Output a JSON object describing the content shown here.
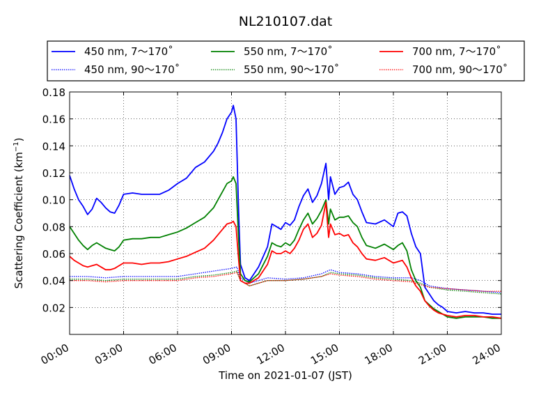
{
  "chart_data": {
    "type": "line",
    "title": "NL210107.dat",
    "xlabel": "Time on 2021-01-07 (JST)",
    "ylabel_main": "Scattering Coefficient (km",
    "ylabel_sup": "−1",
    "ylabel_close": ")",
    "xlim": [
      0,
      24
    ],
    "ylim": [
      0.0,
      0.18
    ],
    "x_ticks": [
      0,
      3,
      6,
      9,
      12,
      15,
      18,
      21,
      24
    ],
    "x_tick_labels": [
      "00:00",
      "03:00",
      "06:00",
      "09:00",
      "12:00",
      "15:00",
      "18:00",
      "21:00",
      "24:00"
    ],
    "y_ticks": [
      0.02,
      0.04,
      0.06,
      0.08,
      0.1,
      0.12,
      0.14,
      0.16,
      0.18
    ],
    "y_tick_labels": [
      "0.02",
      "0.04",
      "0.06",
      "0.08",
      "0.10",
      "0.12",
      "0.14",
      "0.16",
      "0.18"
    ],
    "grid": true,
    "legend_position": "top",
    "series": [
      {
        "name": "450 nm, 7～170˚",
        "color": "#0000ff",
        "style": "solid",
        "x": [
          0,
          0.25,
          0.5,
          0.75,
          1,
          1.25,
          1.5,
          1.75,
          2,
          2.25,
          2.5,
          2.75,
          3,
          3.5,
          4,
          4.5,
          5,
          5.5,
          6,
          6.5,
          7,
          7.5,
          8,
          8.25,
          8.5,
          8.75,
          9,
          9.1,
          9.25,
          9.4,
          9.5,
          9.75,
          10,
          10.5,
          11,
          11.25,
          11.5,
          11.75,
          12,
          12.25,
          12.5,
          12.75,
          13,
          13.25,
          13.5,
          13.75,
          14,
          14.25,
          14.4,
          14.5,
          14.75,
          15,
          15.25,
          15.5,
          15.75,
          16,
          16.25,
          16.5,
          17,
          17.5,
          18,
          18.25,
          18.5,
          18.75,
          19,
          19.25,
          19.5,
          19.75,
          20,
          20.25,
          20.5,
          20.75,
          21,
          21.5,
          22,
          22.5,
          23,
          23.5,
          24
        ],
        "y": [
          0.118,
          0.108,
          0.1,
          0.095,
          0.089,
          0.093,
          0.101,
          0.098,
          0.094,
          0.091,
          0.09,
          0.096,
          0.104,
          0.105,
          0.104,
          0.104,
          0.104,
          0.107,
          0.112,
          0.116,
          0.124,
          0.128,
          0.136,
          0.142,
          0.15,
          0.16,
          0.165,
          0.17,
          0.16,
          0.09,
          0.052,
          0.042,
          0.04,
          0.05,
          0.065,
          0.082,
          0.08,
          0.078,
          0.083,
          0.081,
          0.085,
          0.095,
          0.103,
          0.108,
          0.098,
          0.103,
          0.112,
          0.127,
          0.1,
          0.117,
          0.104,
          0.109,
          0.11,
          0.113,
          0.104,
          0.1,
          0.091,
          0.083,
          0.082,
          0.085,
          0.08,
          0.09,
          0.091,
          0.088,
          0.075,
          0.065,
          0.06,
          0.035,
          0.03,
          0.025,
          0.022,
          0.02,
          0.017,
          0.016,
          0.017,
          0.016,
          0.016,
          0.015,
          0.015
        ]
      },
      {
        "name": "450 nm, 90～170˚",
        "color": "#0000ff",
        "style": "dotted",
        "x": [
          0,
          1,
          2,
          3,
          4,
          5,
          6,
          7,
          8,
          8.5,
          9,
          9.3,
          9.5,
          10,
          10.5,
          11,
          12,
          13,
          14,
          14.5,
          15,
          16,
          17,
          18,
          19,
          19.5,
          20,
          21,
          22,
          23,
          24
        ],
        "y": [
          0.043,
          0.043,
          0.042,
          0.043,
          0.043,
          0.043,
          0.043,
          0.045,
          0.047,
          0.048,
          0.049,
          0.05,
          0.042,
          0.038,
          0.04,
          0.042,
          0.041,
          0.042,
          0.045,
          0.048,
          0.046,
          0.045,
          0.043,
          0.042,
          0.042,
          0.04,
          0.036,
          0.034,
          0.033,
          0.032,
          0.031
        ]
      },
      {
        "name": "550 nm, 7～170˚",
        "color": "#008000",
        "style": "solid",
        "x": [
          0,
          0.25,
          0.5,
          0.75,
          1,
          1.25,
          1.5,
          1.75,
          2,
          2.25,
          2.5,
          2.75,
          3,
          3.5,
          4,
          4.5,
          5,
          5.5,
          6,
          6.5,
          7,
          7.5,
          8,
          8.25,
          8.5,
          8.75,
          9,
          9.1,
          9.25,
          9.4,
          9.5,
          9.75,
          10,
          10.5,
          11,
          11.25,
          11.5,
          11.75,
          12,
          12.25,
          12.5,
          12.75,
          13,
          13.25,
          13.5,
          13.75,
          14,
          14.25,
          14.4,
          14.5,
          14.75,
          15,
          15.25,
          15.5,
          15.75,
          16,
          16.25,
          16.5,
          17,
          17.5,
          18,
          18.25,
          18.5,
          18.75,
          19,
          19.25,
          19.5,
          19.75,
          20,
          20.25,
          20.5,
          20.75,
          21,
          21.5,
          22,
          22.5,
          23,
          23.5,
          24
        ],
        "y": [
          0.08,
          0.075,
          0.07,
          0.066,
          0.063,
          0.066,
          0.068,
          0.066,
          0.064,
          0.063,
          0.062,
          0.065,
          0.07,
          0.071,
          0.071,
          0.072,
          0.072,
          0.074,
          0.076,
          0.079,
          0.083,
          0.087,
          0.094,
          0.1,
          0.106,
          0.112,
          0.114,
          0.117,
          0.112,
          0.07,
          0.045,
          0.04,
          0.039,
          0.045,
          0.058,
          0.068,
          0.066,
          0.065,
          0.068,
          0.066,
          0.07,
          0.078,
          0.085,
          0.09,
          0.082,
          0.086,
          0.092,
          0.1,
          0.082,
          0.093,
          0.085,
          0.087,
          0.087,
          0.088,
          0.083,
          0.08,
          0.072,
          0.066,
          0.064,
          0.067,
          0.063,
          0.066,
          0.068,
          0.062,
          0.048,
          0.04,
          0.035,
          0.025,
          0.022,
          0.019,
          0.017,
          0.015,
          0.013,
          0.012,
          0.013,
          0.013,
          0.013,
          0.012,
          0.012
        ]
      },
      {
        "name": "550 nm, 90～170˚",
        "color": "#008000",
        "style": "dotted",
        "x": [
          0,
          1,
          2,
          3,
          4,
          5,
          6,
          7,
          8,
          8.5,
          9,
          9.3,
          9.5,
          10,
          10.5,
          11,
          12,
          13,
          14,
          14.5,
          15,
          16,
          17,
          18,
          19,
          19.5,
          20,
          21,
          22,
          23,
          24
        ],
        "y": [
          0.041,
          0.041,
          0.04,
          0.041,
          0.041,
          0.041,
          0.041,
          0.043,
          0.044,
          0.045,
          0.046,
          0.047,
          0.04,
          0.036,
          0.038,
          0.04,
          0.04,
          0.041,
          0.043,
          0.046,
          0.045,
          0.044,
          0.042,
          0.041,
          0.04,
          0.038,
          0.035,
          0.033,
          0.032,
          0.031,
          0.03
        ]
      },
      {
        "name": "700 nm, 7～170˚",
        "color": "#ff0000",
        "style": "solid",
        "x": [
          0,
          0.25,
          0.5,
          0.75,
          1,
          1.25,
          1.5,
          1.75,
          2,
          2.25,
          2.5,
          2.75,
          3,
          3.5,
          4,
          4.5,
          5,
          5.5,
          6,
          6.5,
          7,
          7.5,
          8,
          8.25,
          8.5,
          8.75,
          9,
          9.1,
          9.25,
          9.4,
          9.5,
          9.75,
          10,
          10.5,
          11,
          11.25,
          11.5,
          11.75,
          12,
          12.25,
          12.5,
          12.75,
          13,
          13.25,
          13.5,
          13.75,
          14,
          14.25,
          14.4,
          14.5,
          14.75,
          15,
          15.25,
          15.5,
          15.75,
          16,
          16.25,
          16.5,
          17,
          17.5,
          18,
          18.25,
          18.5,
          18.75,
          19,
          19.25,
          19.5,
          19.75,
          20,
          20.25,
          20.5,
          20.75,
          21,
          21.5,
          22,
          22.5,
          23,
          23.5,
          24
        ],
        "y": [
          0.058,
          0.055,
          0.053,
          0.051,
          0.05,
          0.051,
          0.052,
          0.05,
          0.048,
          0.048,
          0.049,
          0.051,
          0.053,
          0.053,
          0.052,
          0.053,
          0.053,
          0.054,
          0.056,
          0.058,
          0.061,
          0.064,
          0.07,
          0.074,
          0.078,
          0.082,
          0.083,
          0.084,
          0.08,
          0.055,
          0.04,
          0.038,
          0.038,
          0.042,
          0.052,
          0.062,
          0.06,
          0.06,
          0.062,
          0.06,
          0.064,
          0.07,
          0.078,
          0.082,
          0.072,
          0.075,
          0.081,
          0.098,
          0.072,
          0.082,
          0.074,
          0.075,
          0.073,
          0.074,
          0.068,
          0.065,
          0.06,
          0.056,
          0.055,
          0.057,
          0.053,
          0.054,
          0.055,
          0.05,
          0.042,
          0.036,
          0.032,
          0.025,
          0.021,
          0.018,
          0.016,
          0.015,
          0.014,
          0.013,
          0.014,
          0.014,
          0.013,
          0.013,
          0.012
        ]
      },
      {
        "name": "700 nm, 90～170˚",
        "color": "#ff0000",
        "style": "dotted",
        "x": [
          0,
          1,
          2,
          3,
          4,
          5,
          6,
          7,
          8,
          8.5,
          9,
          9.3,
          9.5,
          10,
          10.5,
          11,
          12,
          13,
          14,
          14.5,
          15,
          16,
          17,
          18,
          19,
          19.5,
          20,
          21,
          22,
          23,
          24
        ],
        "y": [
          0.04,
          0.04,
          0.039,
          0.04,
          0.04,
          0.04,
          0.04,
          0.042,
          0.043,
          0.044,
          0.045,
          0.046,
          0.04,
          0.036,
          0.038,
          0.04,
          0.04,
          0.041,
          0.043,
          0.045,
          0.044,
          0.043,
          0.041,
          0.04,
          0.039,
          0.037,
          0.035,
          0.034,
          0.033,
          0.032,
          0.032
        ]
      }
    ]
  }
}
